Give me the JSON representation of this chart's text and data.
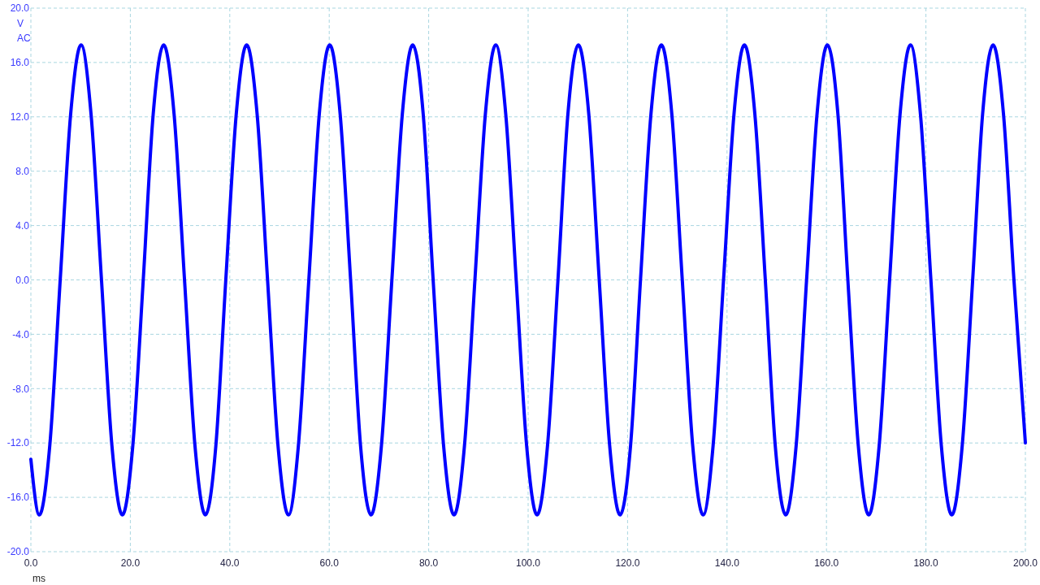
{
  "chart_data": {
    "type": "line",
    "xlabel": "ms",
    "ylabel": "V",
    "annotations": [
      "AC"
    ],
    "xlim": [
      0,
      200
    ],
    "ylim": [
      -20,
      20
    ],
    "xticks": [
      {
        "value": 0,
        "label": "0.0"
      },
      {
        "value": 20,
        "label": "20.0"
      },
      {
        "value": 40,
        "label": "40.0"
      },
      {
        "value": 60,
        "label": "60.0"
      },
      {
        "value": 80,
        "label": "80.0"
      },
      {
        "value": 100,
        "label": "100.0"
      },
      {
        "value": 120,
        "label": "120.0"
      },
      {
        "value": 140,
        "label": "140.0"
      },
      {
        "value": 160,
        "label": "160.0"
      },
      {
        "value": 180,
        "label": "180.0"
      },
      {
        "value": 200,
        "label": "200.0"
      }
    ],
    "yticks": [
      {
        "value": -20,
        "label": "-20.0"
      },
      {
        "value": -16,
        "label": "-16.0"
      },
      {
        "value": -12,
        "label": "-12.0"
      },
      {
        "value": -8,
        "label": "-8.0"
      },
      {
        "value": -4,
        "label": "-4.0"
      },
      {
        "value": 0,
        "label": "0.0"
      },
      {
        "value": 4,
        "label": "4.0"
      },
      {
        "value": 8,
        "label": "8.0"
      },
      {
        "value": 12,
        "label": "12.0"
      },
      {
        "value": 16,
        "label": "16.0"
      },
      {
        "value": 20,
        "label": "20.0"
      }
    ],
    "grid": true,
    "x": [
      0,
      1.7,
      3.8,
      5.9,
      8.0,
      10.1,
      12.1,
      14.2,
      16.3,
      18.4,
      20.5,
      22.6,
      24.6,
      26.7,
      28.8,
      30.9,
      33.0,
      35.1,
      37.2,
      39.2,
      41.3,
      43.4,
      45.5,
      47.6,
      49.7,
      51.8,
      53.8,
      55.9,
      58.0,
      60.1,
      62.2,
      64.3,
      66.3,
      68.4,
      70.5,
      72.6,
      74.7,
      76.8,
      78.9,
      80.9,
      83.0,
      85.1,
      87.2,
      89.3,
      91.4,
      93.5,
      95.5,
      97.6,
      99.7,
      101.8,
      103.9,
      106.0,
      108.0,
      110.1,
      112.2,
      114.3,
      116.4,
      118.5,
      120.6,
      122.6,
      124.7,
      126.8,
      128.9,
      131.0,
      133.1,
      135.2,
      137.2,
      139.3,
      141.4,
      143.5,
      145.6,
      147.7,
      149.7,
      151.8,
      153.9,
      156.0,
      158.1,
      160.2,
      162.3,
      164.3,
      166.4,
      168.5,
      170.6,
      172.7,
      174.8,
      176.9,
      178.9,
      181.0,
      183.1,
      185.2,
      187.3,
      189.4,
      191.4,
      193.5,
      195.6,
      197.7,
      200
    ],
    "series": [
      {
        "color": "#0000ff",
        "values": [
          -13.2,
          -17.3,
          -12.2,
          0,
          12.2,
          17.3,
          12.2,
          0,
          -12.2,
          -17.3,
          -12.2,
          0,
          12.2,
          17.3,
          12.2,
          0,
          -12.2,
          -17.3,
          -12.2,
          0,
          12.2,
          17.3,
          12.2,
          0,
          -12.2,
          -17.3,
          -12.2,
          0,
          12.2,
          17.3,
          12.2,
          0,
          -12.2,
          -17.3,
          -12.2,
          0,
          12.2,
          17.3,
          12.2,
          0,
          -12.2,
          -17.3,
          -12.2,
          0,
          12.2,
          17.3,
          12.2,
          0,
          -12.2,
          -17.3,
          -12.2,
          0,
          12.2,
          17.3,
          12.2,
          0,
          -12.2,
          -17.3,
          -12.2,
          0,
          12.2,
          17.3,
          12.2,
          0,
          -12.2,
          -17.3,
          -12.2,
          0,
          12.2,
          17.3,
          12.2,
          0,
          -12.2,
          -17.3,
          -12.2,
          0,
          12.2,
          17.3,
          12.2,
          0,
          -12.2,
          -17.3,
          -12.2,
          0,
          12.2,
          17.3,
          12.2,
          0,
          -12.2,
          -17.3,
          -12.2,
          0,
          12.2,
          17.3,
          12.2,
          0,
          -12.0
        ]
      }
    ]
  }
}
